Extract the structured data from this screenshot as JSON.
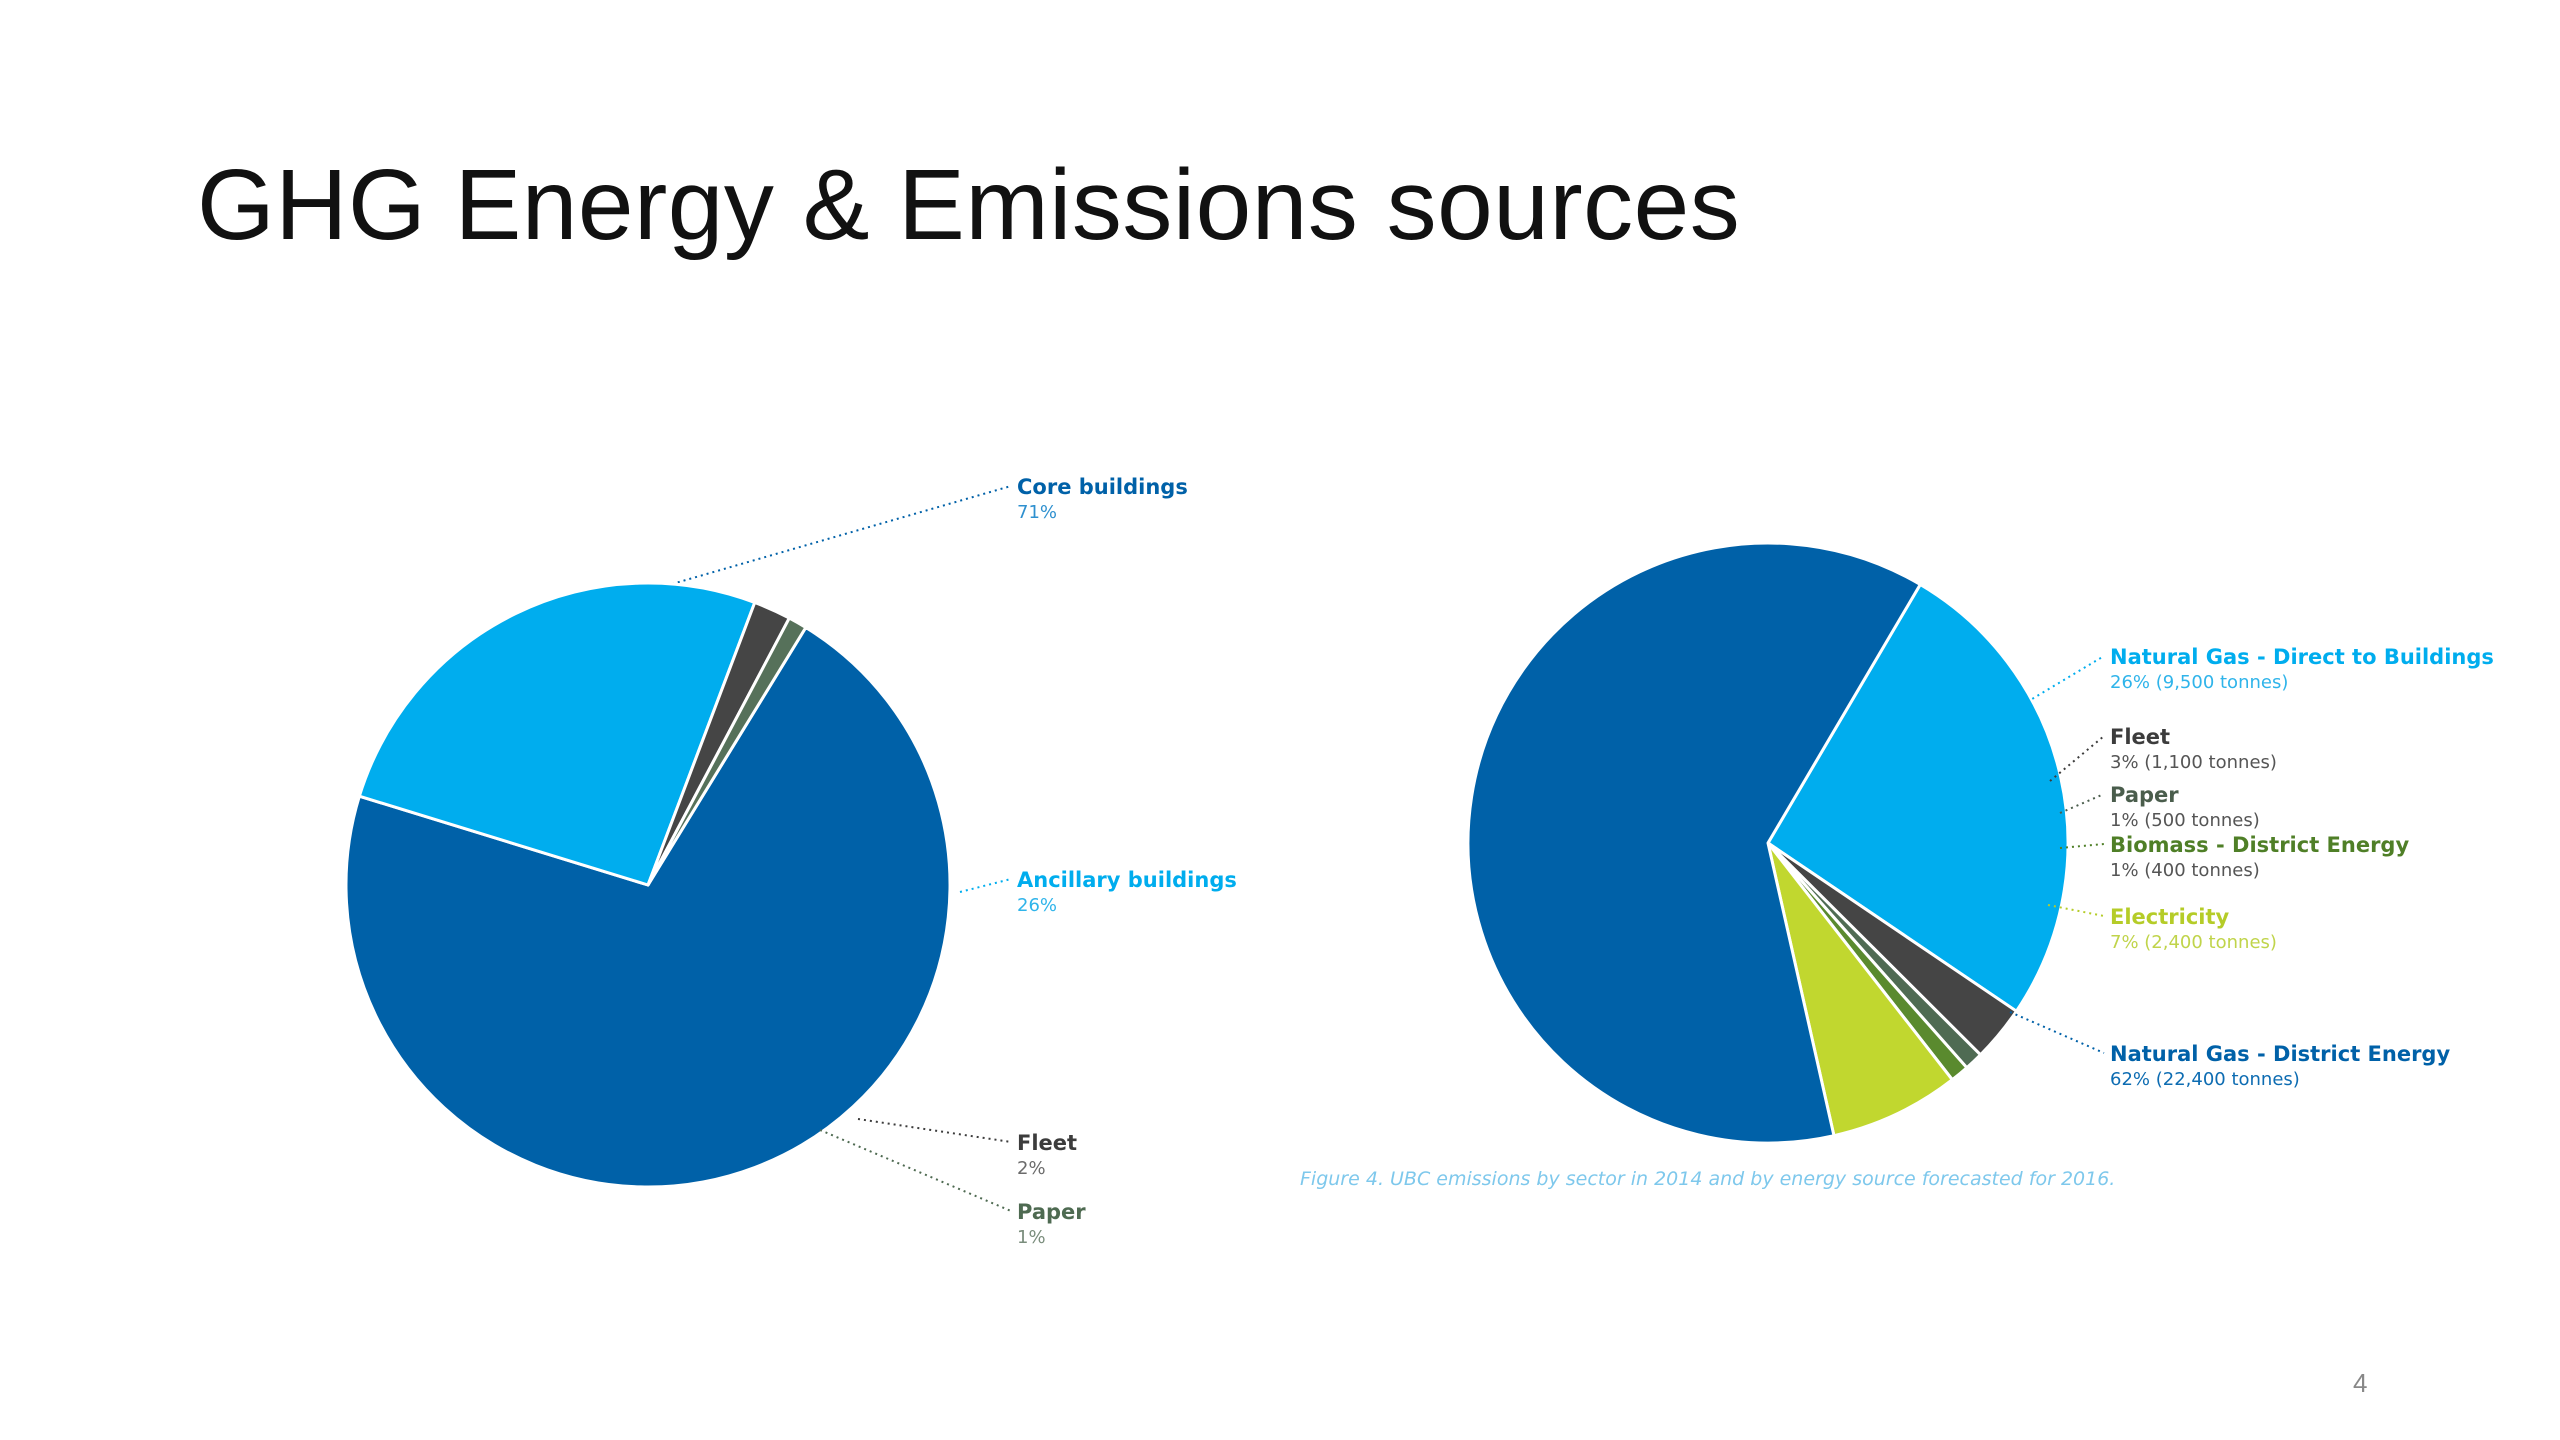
{
  "slide": {
    "title": "GHG Energy & Emissions sources",
    "page_number": "4",
    "caption": "Figure 4. UBC emissions by sector in 2014 and by energy source forecasted for 2016."
  },
  "chart_data": [
    {
      "type": "pie",
      "title": "",
      "slices": [
        {
          "name": "Core buildings",
          "value_label": "71%",
          "value": 71,
          "color": "#0061a8",
          "label_color": "#0061a8",
          "value_color": "#2e90cf"
        },
        {
          "name": "Ancillary buildings",
          "value_label": "26%",
          "value": 26,
          "color": "#00adee",
          "label_color": "#00adee",
          "value_color": "#2fb4ea"
        },
        {
          "name": "Fleet",
          "value_label": "2%",
          "value": 2,
          "color": "#454545",
          "label_color": "#3c3c3c",
          "value_color": "#6b6b6b"
        },
        {
          "name": "Paper",
          "value_label": "1%",
          "value": 1,
          "color": "#56715a",
          "label_color": "#4e6a51",
          "value_color": "#7a8d7c"
        }
      ]
    },
    {
      "type": "pie",
      "title": "",
      "slices": [
        {
          "name": "Natural Gas - Direct to Buildings",
          "value_label": "26% (9,500 tonnes)",
          "value": 26,
          "color": "#00adee",
          "label_color": "#00adee",
          "value_color": "#2fb4ea"
        },
        {
          "name": "Fleet",
          "value_label": "3% (1,100 tonnes)",
          "value": 3,
          "color": "#454545",
          "label_color": "#3c3c3c",
          "value_color": "#555555"
        },
        {
          "name": "Paper",
          "value_label": "1% (500 tonnes)",
          "value": 1,
          "color": "#4f6b53",
          "label_color": "#4a5d4c",
          "value_color": "#555555"
        },
        {
          "name": "Biomass - District Energy",
          "value_label": "1% (400 tonnes)",
          "value": 1,
          "color": "#5a8a2e",
          "label_color": "#4f7f27",
          "value_color": "#555555"
        },
        {
          "name": "Electricity",
          "value_label": "7% (2,400 tonnes)",
          "value": 7,
          "color": "#c1d72f",
          "label_color": "#b5cc28",
          "value_color": "#c0d44a"
        },
        {
          "name": "Natural Gas - District Energy",
          "value_label": "62% (22,400 tonnes)",
          "value": 62,
          "color": "#0061a8",
          "label_color": "#0061a8",
          "value_color": "#0d6cb2"
        }
      ]
    }
  ]
}
